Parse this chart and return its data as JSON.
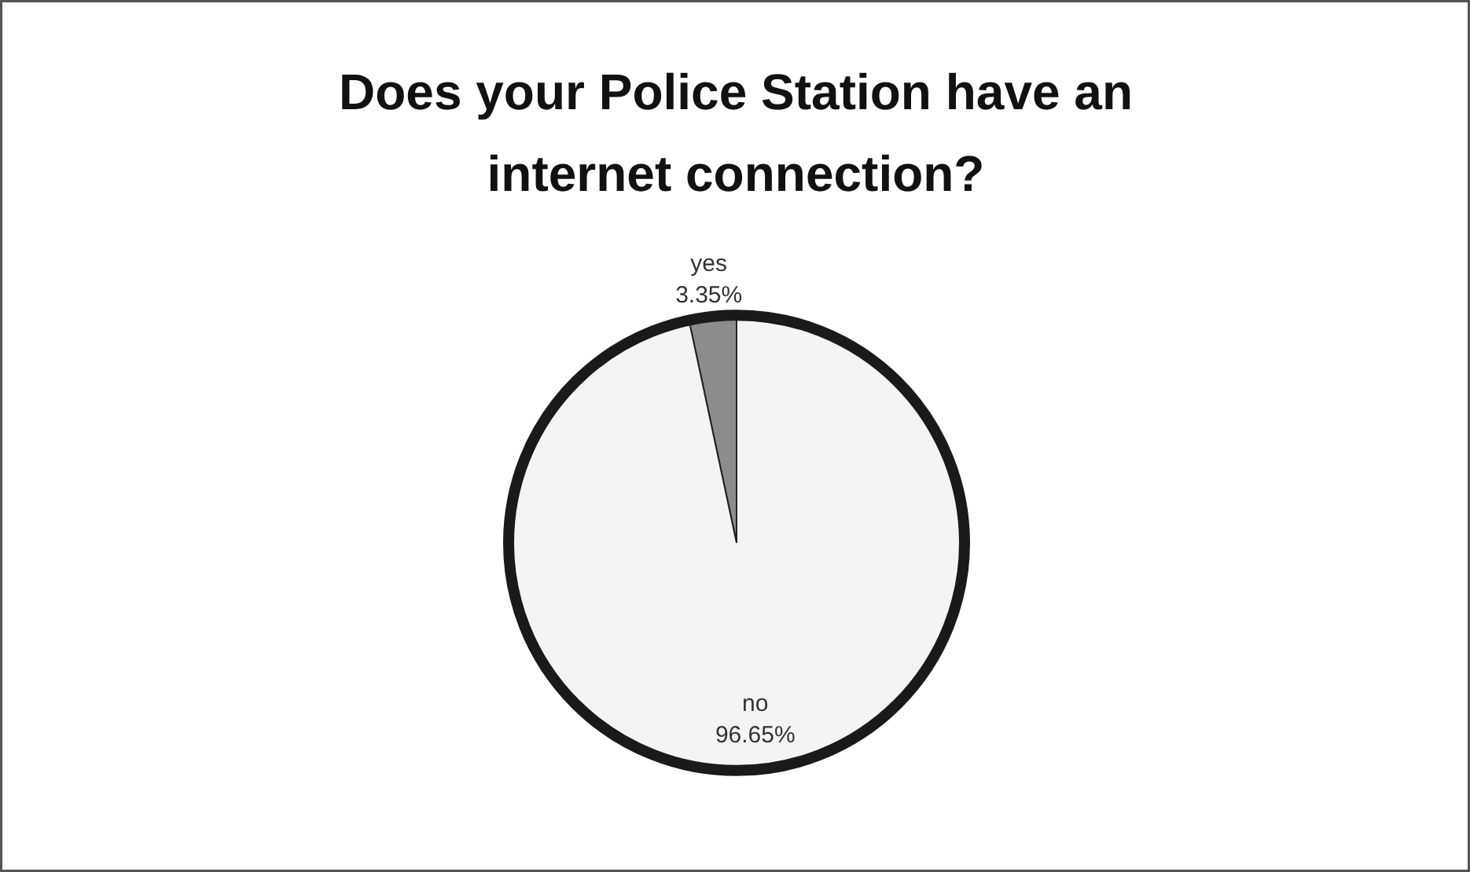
{
  "chart_data": {
    "type": "pie",
    "title": "Does your Police Station have an internet connection?",
    "categories": [
      "yes",
      "no"
    ],
    "values": [
      3.35,
      96.65
    ],
    "colors": [
      "#8c8c8c",
      "#f4f4f4"
    ],
    "value_labels": [
      "3.35%",
      "96.65%"
    ]
  }
}
